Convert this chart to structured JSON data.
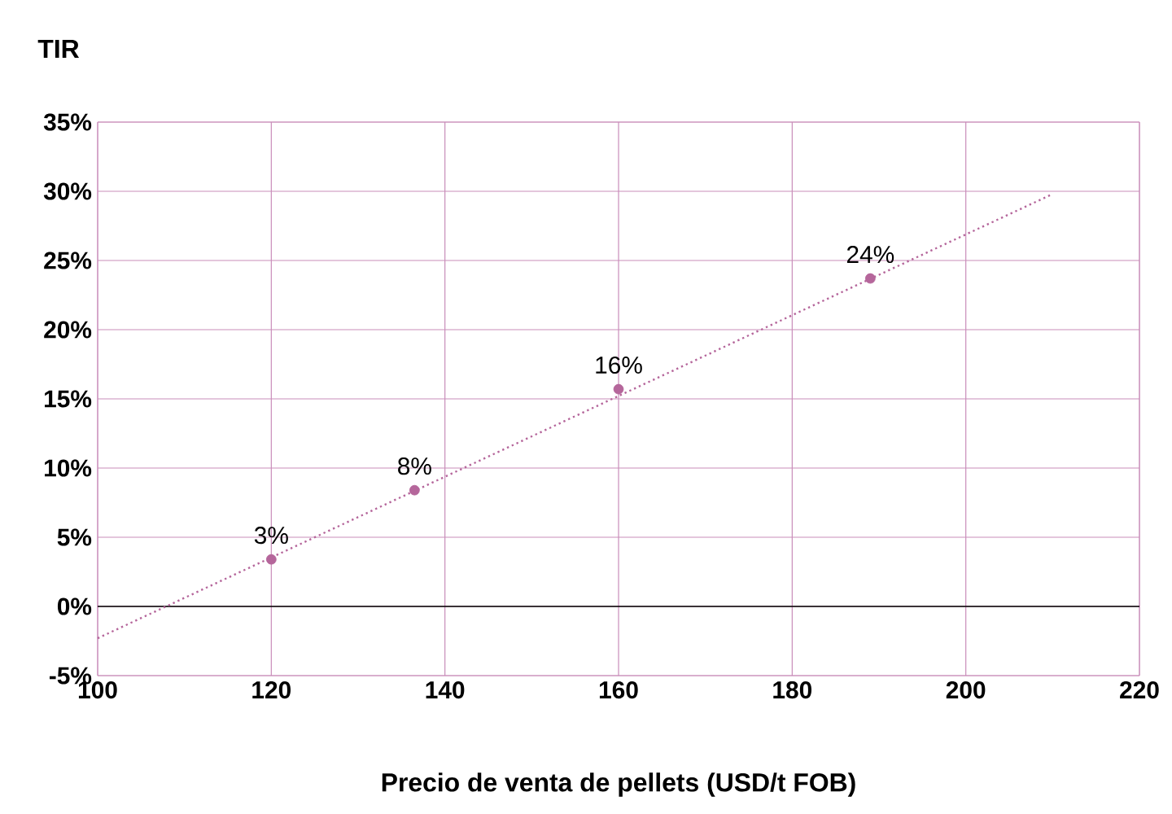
{
  "chart_data": {
    "type": "scatter",
    "xlabel": "Precio de venta de pellets (USD/t FOB)",
    "ylabel": "TIR",
    "xlim": [
      100,
      220
    ],
    "xticks": [
      100,
      120,
      140,
      160,
      180,
      200,
      220
    ],
    "ylim": [
      -5,
      35
    ],
    "yticks": [
      {
        "value": -5,
        "label": "-5%"
      },
      {
        "value": 0,
        "label": "0%"
      },
      {
        "value": 5,
        "label": "5%"
      },
      {
        "value": 10,
        "label": "10%"
      },
      {
        "value": 15,
        "label": "15%"
      },
      {
        "value": 20,
        "label": "20%"
      },
      {
        "value": 25,
        "label": "25%"
      },
      {
        "value": 30,
        "label": "30%"
      },
      {
        "value": 35,
        "label": "35%"
      }
    ],
    "grid": true,
    "ref_lines": [
      {
        "axis": "y",
        "value": 0,
        "color": "#000000"
      }
    ],
    "series": [
      {
        "color": "#b5669b",
        "marker": "circle",
        "x": [
          120,
          136.5,
          160,
          189
        ],
        "values": [
          3.4,
          8.4,
          15.7,
          23.7
        ],
        "value_labels": [
          "3%",
          "8%",
          "16%",
          "24%"
        ]
      },
      {
        "type": "line",
        "color": "#b5669b",
        "line_style": "dotted",
        "marker": "none",
        "x": [
          100,
          210
        ],
        "values": [
          -2.3,
          29.8
        ]
      }
    ]
  }
}
